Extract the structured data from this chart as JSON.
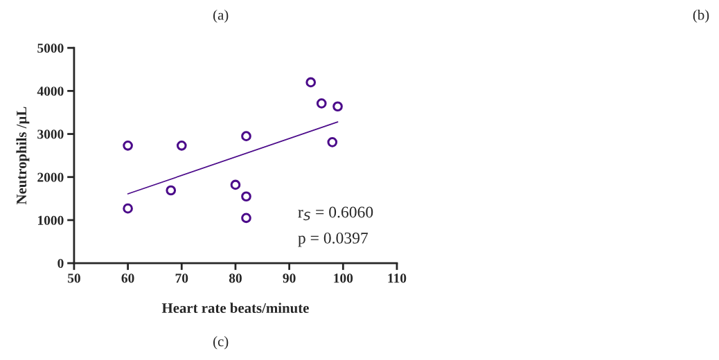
{
  "chart_data": {
    "type": "scatter",
    "xlabel": "Heart rate beats/minute",
    "ylabel": "Neutrophils /µL",
    "x": [
      60,
      60,
      68,
      70,
      80,
      82,
      82,
      82,
      94,
      96,
      99,
      98
    ],
    "series": [
      {
        "color": "#4b0a8a",
        "marker": "circle",
        "values": [
          1270,
          2730,
          1690,
          2730,
          1820,
          2950,
          1550,
          1050,
          4200,
          3710,
          3640,
          2810
        ]
      },
      {
        "type": "line",
        "color": "#4b0a8a",
        "x": [
          60,
          99
        ],
        "values": [
          1610,
          3280
        ]
      }
    ],
    "xlim": [
      50,
      110
    ],
    "xticks": [
      50,
      60,
      70,
      80,
      90,
      100,
      110
    ],
    "ylim": [
      0,
      5000
    ],
    "yticks": [
      0,
      1000,
      2000,
      3000,
      4000,
      5000
    ],
    "grid": false,
    "annotations": [
      "(a)",
      "(b)",
      "r$_{S}$ = 0.6060",
      "p = 0.0397",
      "(c)"
    ]
  }
}
